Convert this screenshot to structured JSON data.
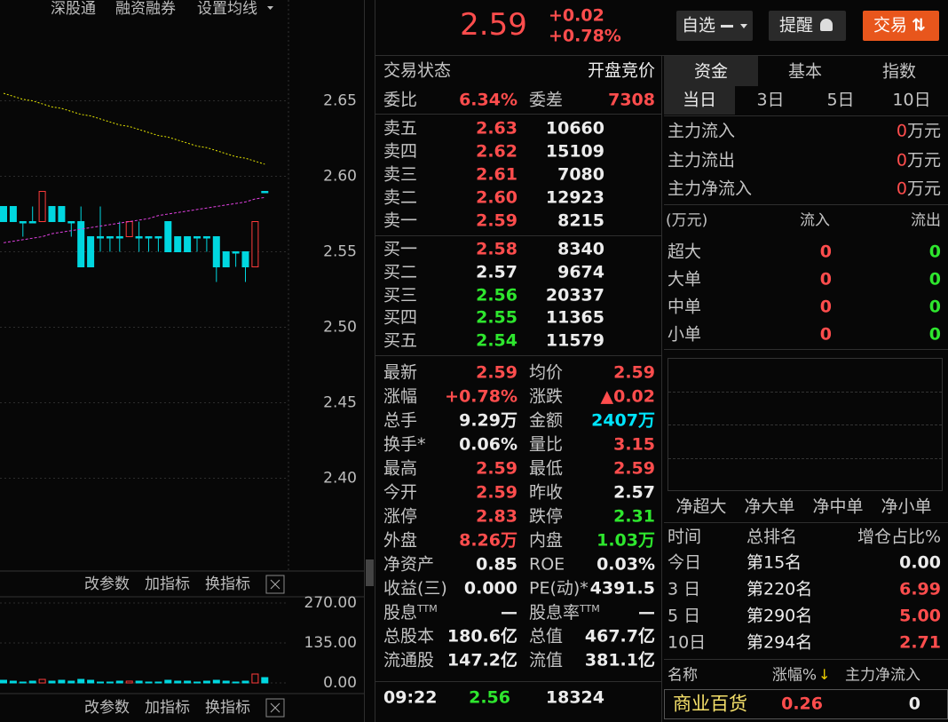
{
  "toolbar": [
    "深股通",
    "融资融券",
    "设置均线"
  ],
  "kline": {
    "ylim": [
      2.3385,
      2.7168
    ],
    "yticks": [
      2.65,
      {
        "value": 2.6,
        "label": "2.60"
      },
      2.55,
      {
        "value": 2.5,
        "label": "2.50"
      },
      2.45,
      {
        "value": 2.4,
        "label": "2.40"
      }
    ],
    "up_color": "#ff3b3b",
    "down_color": "#00d7e0",
    "candles": [
      [
        2.58,
        2.58,
        2.57,
        2.57
      ],
      [
        2.58,
        2.58,
        2.57,
        2.57
      ],
      [
        2.57,
        2.57,
        2.56,
        2.57
      ],
      [
        2.57,
        2.58,
        2.57,
        2.57
      ],
      [
        2.57,
        2.59,
        2.57,
        2.59
      ],
      [
        2.58,
        2.58,
        2.57,
        2.57
      ],
      [
        2.58,
        2.58,
        2.57,
        2.57
      ],
      [
        2.57,
        2.57,
        2.56,
        2.57
      ],
      [
        2.57,
        2.58,
        2.54,
        2.54
      ],
      [
        2.56,
        2.56,
        2.54,
        2.54
      ],
      [
        2.56,
        2.58,
        2.55,
        2.56
      ],
      [
        2.56,
        2.56,
        2.55,
        2.56
      ],
      [
        2.56,
        2.57,
        2.55,
        2.56
      ],
      [
        2.56,
        2.57,
        2.56,
        2.57
      ],
      [
        2.56,
        2.57,
        2.55,
        2.56
      ],
      [
        2.56,
        2.56,
        2.55,
        2.56
      ],
      [
        2.56,
        2.56,
        2.55,
        2.56
      ],
      [
        2.57,
        2.57,
        2.55,
        2.55
      ],
      [
        2.56,
        2.56,
        2.55,
        2.55
      ],
      [
        2.56,
        2.56,
        2.55,
        2.55
      ],
      [
        2.56,
        2.56,
        2.55,
        2.56
      ],
      [
        2.56,
        2.56,
        2.55,
        2.56
      ],
      [
        2.56,
        2.56,
        2.53,
        2.54
      ],
      [
        2.55,
        2.55,
        2.54,
        2.54
      ],
      [
        2.55,
        2.55,
        2.54,
        2.55
      ],
      [
        2.55,
        2.55,
        2.53,
        2.54
      ],
      [
        2.54,
        2.57,
        2.54,
        2.57
      ],
      [
        2.59,
        2.59,
        2.59,
        2.59
      ]
    ],
    "ma": [
      {
        "color": "#e6e600",
        "values": [
          2.655,
          2.653,
          2.651,
          2.65,
          2.648,
          2.646,
          2.645,
          2.643,
          2.641,
          2.64,
          2.638,
          2.636,
          2.634,
          2.633,
          2.631,
          2.629,
          2.627,
          2.626,
          2.624,
          2.622,
          2.62,
          2.619,
          2.617,
          2.615,
          2.613,
          2.612,
          2.61,
          2.608
        ]
      },
      {
        "color": "#e040e0",
        "values": [
          2.556,
          2.557,
          2.558,
          2.559,
          2.56,
          2.562,
          2.563,
          2.564,
          2.565,
          2.566,
          2.567,
          2.568,
          2.569,
          2.57,
          2.571,
          2.572,
          2.574,
          2.575,
          2.576,
          2.577,
          2.578,
          2.579,
          2.58,
          2.581,
          2.582,
          2.583,
          2.585,
          2.586
        ]
      }
    ],
    "volume": {
      "ylim": [
        0,
        291
      ],
      "yticks": [
        {
          "value": 270,
          "label": "270.00"
        },
        {
          "value": 135,
          "label": "135.00"
        },
        {
          "value": 0,
          "label": "0.00"
        }
      ],
      "values": [
        9,
        6,
        3,
        6,
        12,
        6,
        9,
        6,
        12,
        9,
        3,
        3,
        6,
        6,
        6,
        3,
        3,
        9,
        6,
        6,
        3,
        6,
        9,
        6,
        3,
        6,
        30,
        18
      ]
    }
  },
  "indicator_toolbar": [
    "改参数",
    "加指标",
    "换指标"
  ],
  "quote": {
    "price": "2.59",
    "change": "+0.02",
    "change_pct": "+0.78%"
  },
  "buttons": [
    "自选",
    "提醒",
    "交易"
  ],
  "order_book": {
    "status_label": "交易状态",
    "status": "开盘竞价",
    "ratio_label": "委比",
    "ratio": "6.34%",
    "diff_label": "委差",
    "diff": "7308",
    "asks": [
      [
        "卖五",
        "2.63",
        "10660"
      ],
      [
        "卖四",
        "2.62",
        "15109"
      ],
      [
        "卖三",
        "2.61",
        "7080"
      ],
      [
        "卖二",
        "2.60",
        "12923"
      ],
      [
        "卖一",
        "2.59",
        "8215"
      ]
    ],
    "bids": [
      [
        "买一",
        "2.58",
        "8340"
      ],
      [
        "买二",
        "2.57",
        "9674"
      ],
      [
        "买三",
        "2.56",
        "20337"
      ],
      [
        "买四",
        "2.55",
        "11365"
      ],
      [
        "买五",
        "2.54",
        "11579"
      ]
    ]
  },
  "stats": [
    [
      "最新",
      "2.59",
      "均价",
      "2.59"
    ],
    [
      "涨幅",
      "+0.78%",
      "涨跌",
      "▲0.02"
    ],
    [
      "总手",
      "9.29万",
      "金额",
      "2407万"
    ],
    [
      "换手*",
      "0.06%",
      "量比",
      "3.15"
    ],
    [
      "最高",
      "2.59",
      "最低",
      "2.59"
    ],
    [
      "今开",
      "2.59",
      "昨收",
      "2.57"
    ],
    [
      "涨停",
      "2.83",
      "跌停",
      "2.31"
    ],
    [
      "外盘",
      "8.26万",
      "内盘",
      "1.03万"
    ],
    [
      "净资产",
      "0.85",
      "ROE",
      "0.03%"
    ],
    [
      "收益(三)",
      "0.000",
      "PE(动)*",
      "4391.5"
    ],
    [
      "股息",
      "—",
      "股息率",
      "—"
    ],
    [
      "总股本",
      "180.6亿",
      "总值",
      "467.7亿"
    ],
    [
      "流通股",
      "147.2亿",
      "流值",
      "381.1亿"
    ]
  ],
  "stats_sup": "TTM",
  "ticks": [
    [
      "09:22",
      "2.56",
      "18324"
    ]
  ],
  "fund": {
    "tabs": [
      "资金",
      "基本",
      "指数"
    ],
    "periods": [
      "当日",
      "3日",
      "5日",
      "10日"
    ],
    "main": [
      [
        "主力流入",
        "0",
        "万元"
      ],
      [
        "主力流出",
        "0",
        "万元"
      ],
      [
        "主力净流入",
        "0",
        "万元"
      ]
    ],
    "unit": "(万元)",
    "in_label": "流入",
    "out_label": "流出",
    "orders": [
      [
        "超大",
        "0",
        "0"
      ],
      [
        "大单",
        "0",
        "0"
      ],
      [
        "中单",
        "0",
        "0"
      ],
      [
        "小单",
        "0",
        "0"
      ]
    ],
    "net_labels": [
      "净超大",
      "净大单",
      "净中单",
      "净小单"
    ]
  },
  "ranking": {
    "headers": [
      "时间",
      "总排名",
      "增仓占比%"
    ],
    "rows": [
      [
        "今日",
        "第15名",
        "0.00"
      ],
      [
        "3 日",
        "第220名",
        "6.99"
      ],
      [
        "5 日",
        "第290名",
        "5.00"
      ],
      [
        "10日",
        "第294名",
        "2.71"
      ]
    ]
  },
  "sector": {
    "headers": [
      "名称",
      "涨幅%",
      "主力净流入"
    ],
    "rows": [
      [
        "商业百货",
        "0.26",
        "0"
      ]
    ]
  }
}
